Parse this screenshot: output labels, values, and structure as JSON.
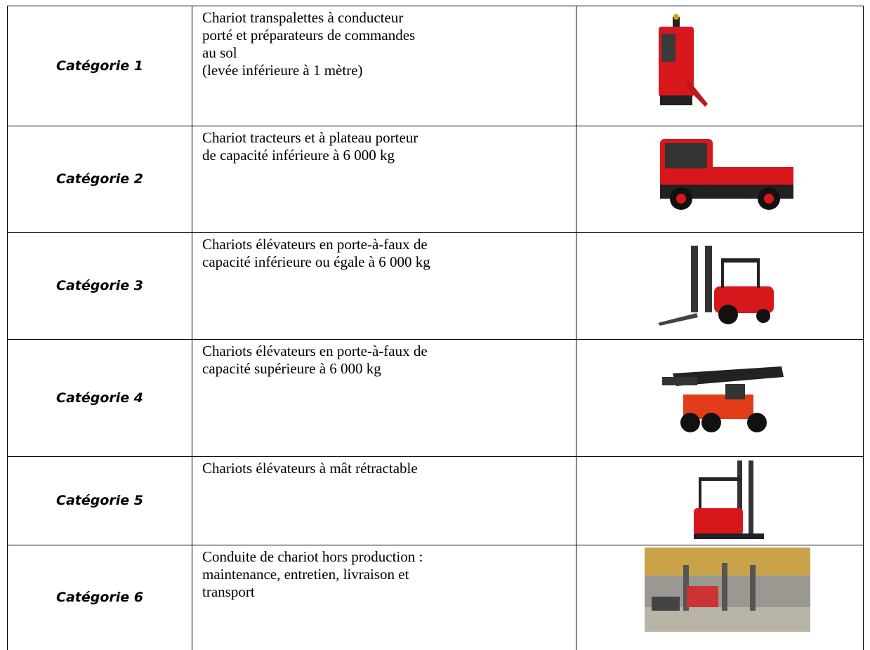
{
  "table": {
    "rows": [
      {
        "category": "Catégorie 1",
        "description": [
          "Chariot transpalettes à conducteur",
          "porté et préparateurs de commandes",
          "au sol",
          "(levée inférieure à 1 mètre)"
        ]
      },
      {
        "category": "Catégorie 2",
        "description": [
          "Chariot tracteurs et à plateau porteur",
          "de capacité inférieure à 6 000 kg"
        ]
      },
      {
        "category": "Catégorie 3",
        "description": [
          "Chariots élévateurs en porte-à-faux de",
          "capacité inférieure ou égale à 6 000 kg"
        ]
      },
      {
        "category": "Catégorie 4",
        "description": [
          "Chariots élévateurs en porte-à-faux de",
          "capacité supérieure à 6 000 kg"
        ]
      },
      {
        "category": "Catégorie 5",
        "description": [
          "Chariots élévateurs à mât rétractable"
        ]
      },
      {
        "category": "Catégorie 6",
        "description": [
          "Conduite de chariot hors production :",
          "maintenance, entretien, livraison et",
          "transport"
        ]
      }
    ]
  }
}
